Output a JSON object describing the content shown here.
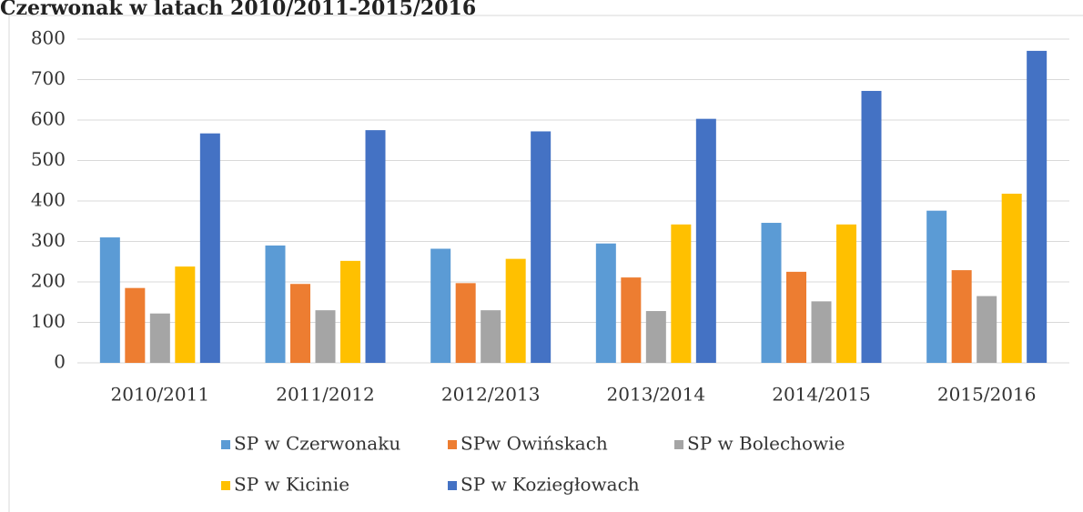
{
  "chart_data": {
    "type": "bar",
    "title": "Czerwonak w latach 2010/2011-2015/2016",
    "categories": [
      "2010/2011",
      "2011/2012",
      "2012/2013",
      "2013/2014",
      "2014/2015",
      "2015/2016"
    ],
    "series": [
      {
        "name": "SP w Czerwonaku",
        "color": "#5b9bd5",
        "values": [
          310,
          290,
          282,
          295,
          346,
          376
        ]
      },
      {
        "name": "SPw Owińskach",
        "color": "#ed7d31",
        "values": [
          185,
          195,
          197,
          211,
          225,
          229
        ]
      },
      {
        "name": "SP w Bolechowie",
        "color": "#a5a5a5",
        "values": [
          122,
          130,
          130,
          128,
          152,
          165
        ]
      },
      {
        "name": "SP w Kicinie",
        "color": "#ffc000",
        "values": [
          238,
          252,
          257,
          342,
          342,
          418
        ]
      },
      {
        "name": "SP w Koziegłowach",
        "color": "#4472c4",
        "values": [
          567,
          575,
          572,
          603,
          672,
          771
        ]
      }
    ],
    "ylim": [
      0,
      800
    ],
    "yticks": [
      0,
      100,
      200,
      300,
      400,
      500,
      600,
      700,
      800
    ],
    "grid": true,
    "legend": "bottom"
  }
}
